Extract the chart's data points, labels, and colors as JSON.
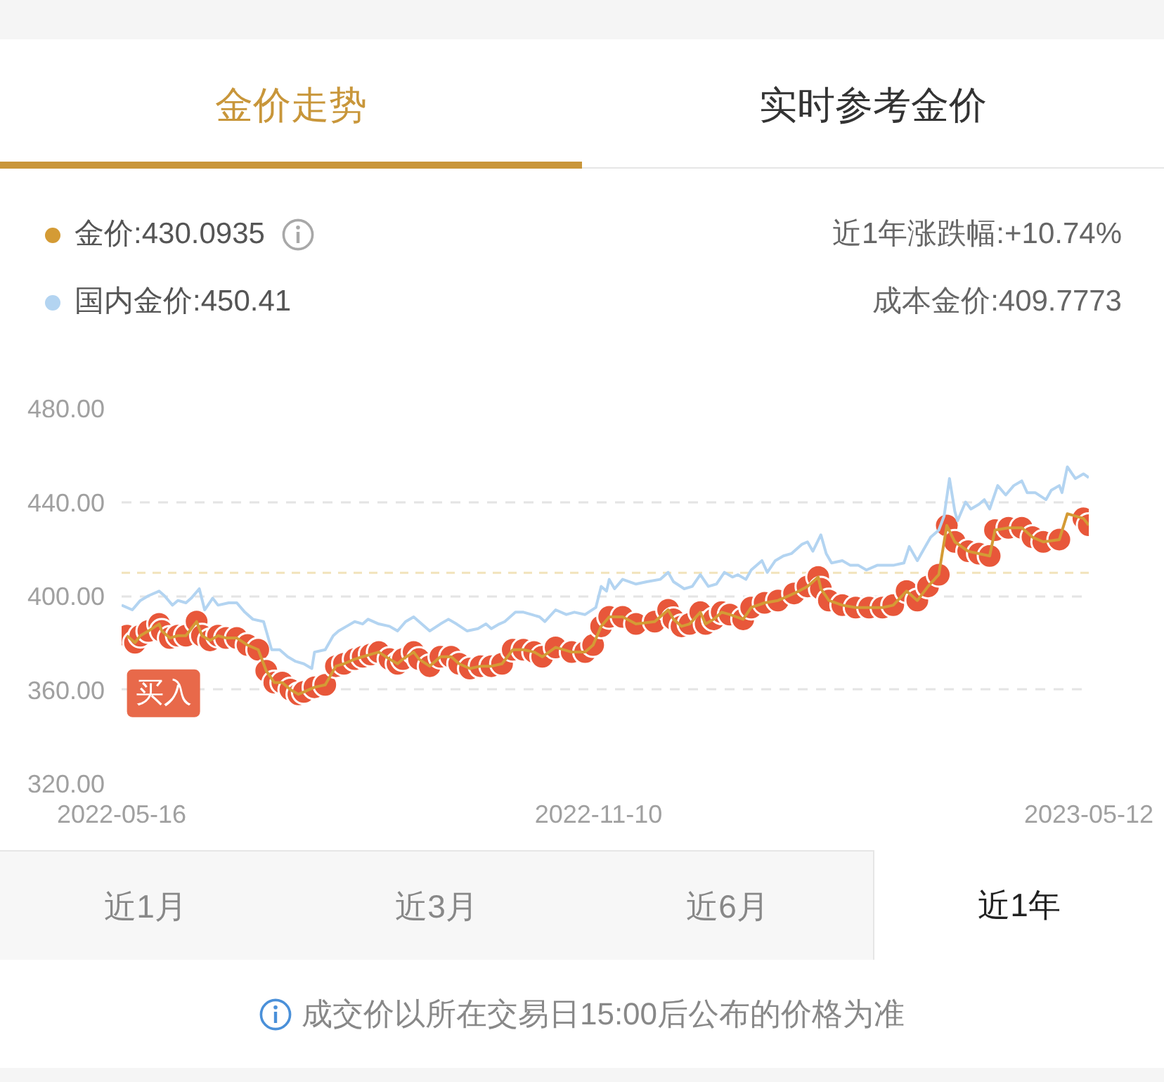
{
  "chart_data": {
    "type": "line",
    "title": "金价走势",
    "annotations": [
      "实时参考金价",
      "近1年涨跌幅:+10.74%",
      "成本金价:409.7773",
      "近1月",
      "近3月",
      "近6月",
      "近1年",
      "成交价以所在交易日15:00后公布的价格为准",
      {
        "text": "买入",
        "x": "2022-05-18",
        "y": 383
      }
    ],
    "xlim": [
      "2022-05-16",
      "2023-05-12"
    ],
    "xticks": [
      "2022-05-16",
      "2022-11-10",
      "2023-05-12"
    ],
    "ylim": [
      320,
      480
    ],
    "yticks": [
      {
        "value": 320,
        "label": "320.00"
      },
      {
        "value": 360,
        "label": "360.00"
      },
      {
        "value": 400,
        "label": "400.00"
      },
      {
        "value": 440,
        "label": "440.00"
      },
      {
        "value": 480,
        "label": "480.00"
      }
    ],
    "grid": "y",
    "legend": "top",
    "ref_lines": [
      {
        "axis": "y",
        "value": 409.7773,
        "color": "#f2e3bb",
        "line_style": "dashed"
      }
    ],
    "series": [
      {
        "name": "金价:430.0935",
        "color": "#d49b35",
        "x": [
          "2022-05-18",
          "2022-05-21",
          "2022-05-23",
          "2022-05-26",
          "2022-05-30",
          "2022-05-31",
          "2022-06-03",
          "2022-06-06",
          "2022-06-09",
          "2022-06-13",
          "2022-06-15",
          "2022-06-18",
          "2022-06-21",
          "2022-06-24",
          "2022-06-28",
          "2022-07-02",
          "2022-07-06",
          "2022-07-09",
          "2022-07-12",
          "2022-07-15",
          "2022-07-18",
          "2022-07-21",
          "2022-07-23",
          "2022-07-27",
          "2022-07-31",
          "2022-08-04",
          "2022-08-07",
          "2022-08-11",
          "2022-08-14",
          "2022-08-17",
          "2022-08-20",
          "2022-08-24",
          "2022-08-27",
          "2022-08-29",
          "2022-09-02",
          "2022-09-04",
          "2022-09-08",
          "2022-09-12",
          "2022-09-16",
          "2022-09-19",
          "2022-09-23",
          "2022-09-27",
          "2022-10-01",
          "2022-10-05",
          "2022-10-09",
          "2022-10-13",
          "2022-10-17",
          "2022-10-20",
          "2022-10-25",
          "2022-10-31",
          "2022-11-05",
          "2022-11-08",
          "2022-11-11",
          "2022-11-14",
          "2022-11-19",
          "2022-11-24",
          "2022-12-01",
          "2022-12-06",
          "2022-12-08",
          "2022-12-11",
          "2022-12-14",
          "2022-12-18",
          "2022-12-20",
          "2022-12-23",
          "2022-12-26",
          "2022-12-29",
          "2023-01-03",
          "2023-01-06",
          "2023-01-11",
          "2023-01-16",
          "2023-01-22",
          "2023-01-27",
          "2023-01-31",
          "2023-02-01",
          "2023-02-04",
          "2023-02-09",
          "2023-02-14",
          "2023-02-19",
          "2023-02-24",
          "2023-02-28",
          "2023-03-05",
          "2023-03-09",
          "2023-03-13",
          "2023-03-17",
          "2023-03-20",
          "2023-03-23",
          "2023-03-28",
          "2023-04-01",
          "2023-04-05",
          "2023-04-07",
          "2023-04-12",
          "2023-04-17",
          "2023-04-21",
          "2023-04-25",
          "2023-05-01",
          "2023-05-04",
          "2023-05-10",
          "2023-05-12"
        ],
        "values": [
          383,
          380,
          383,
          385,
          388,
          385,
          382,
          383,
          383,
          389,
          383,
          381,
          383,
          382,
          382,
          379,
          377,
          368,
          363,
          363,
          360,
          358,
          359,
          361,
          362,
          370,
          371,
          373,
          374,
          375,
          376,
          373,
          371,
          373,
          376,
          373,
          370,
          374,
          374,
          371,
          369,
          370,
          370,
          371,
          377,
          377,
          376,
          374,
          378,
          376,
          376,
          379,
          387,
          391,
          391,
          388,
          389,
          394,
          390,
          387,
          388,
          393,
          388,
          390,
          393,
          392,
          390,
          395,
          397,
          398,
          401,
          404,
          408,
          403,
          398,
          396,
          395,
          395,
          395,
          396,
          402,
          398,
          404,
          409,
          430,
          423,
          419,
          418,
          417,
          428,
          429,
          429,
          425,
          423,
          424,
          435,
          433,
          430.0935
        ]
      },
      {
        "name": "国内金价:450.41",
        "color": "#b3d4f1",
        "x": [
          "2022-05-16",
          "2022-05-20",
          "2022-05-23",
          "2022-05-26",
          "2022-05-30",
          "2022-06-01",
          "2022-06-04",
          "2022-06-06",
          "2022-06-09",
          "2022-06-11",
          "2022-06-14",
          "2022-06-16",
          "2022-06-19",
          "2022-06-21",
          "2022-06-25",
          "2022-06-28",
          "2022-07-01",
          "2022-07-04",
          "2022-07-08",
          "2022-07-11",
          "2022-07-14",
          "2022-07-17",
          "2022-07-20",
          "2022-07-23",
          "2022-07-26",
          "2022-07-27",
          "2022-07-31",
          "2022-08-03",
          "2022-08-05",
          "2022-08-08",
          "2022-08-11",
          "2022-08-14",
          "2022-08-16",
          "2022-08-20",
          "2022-08-24",
          "2022-08-27",
          "2022-08-30",
          "2022-09-02",
          "2022-09-05",
          "2022-09-08",
          "2022-09-12",
          "2022-09-15",
          "2022-09-18",
          "2022-09-22",
          "2022-09-26",
          "2022-09-29",
          "2022-10-01",
          "2022-10-04",
          "2022-10-06",
          "2022-10-10",
          "2022-10-13",
          "2022-10-16",
          "2022-10-19",
          "2022-10-21",
          "2022-10-25",
          "2022-10-29",
          "2022-11-01",
          "2022-11-05",
          "2022-11-09",
          "2022-11-11",
          "2022-11-13",
          "2022-11-14",
          "2022-11-16",
          "2022-11-19",
          "2022-11-24",
          "2022-11-28",
          "2022-12-03",
          "2022-12-06",
          "2022-12-08",
          "2022-12-12",
          "2022-12-15",
          "2022-12-18",
          "2022-12-21",
          "2022-12-24",
          "2022-12-27",
          "2022-12-30",
          "2023-01-01",
          "2023-01-04",
          "2023-01-06",
          "2023-01-10",
          "2023-01-12",
          "2023-01-15",
          "2023-01-18",
          "2023-01-21",
          "2023-01-25",
          "2023-01-27",
          "2023-01-29",
          "2023-02-01",
          "2023-02-03",
          "2023-02-05",
          "2023-02-09",
          "2023-02-12",
          "2023-02-15",
          "2023-02-18",
          "2023-02-22",
          "2023-02-25",
          "2023-02-28",
          "2023-03-04",
          "2023-03-06",
          "2023-03-09",
          "2023-03-11",
          "2023-03-14",
          "2023-03-17",
          "2023-03-19",
          "2023-03-21",
          "2023-03-23",
          "2023-03-24",
          "2023-03-27",
          "2023-03-29",
          "2023-04-01",
          "2023-04-03",
          "2023-04-05",
          "2023-04-08",
          "2023-04-11",
          "2023-04-14",
          "2023-04-17",
          "2023-04-19",
          "2023-04-22",
          "2023-04-26",
          "2023-04-28",
          "2023-05-01",
          "2023-05-02",
          "2023-05-04",
          "2023-05-07",
          "2023-05-10",
          "2023-05-12"
        ],
        "values": [
          396,
          394,
          398,
          400,
          402,
          400,
          396,
          398,
          397,
          399,
          403,
          394,
          399,
          396,
          397,
          397,
          393,
          390,
          389,
          377,
          377,
          374,
          372,
          371,
          369,
          376,
          377,
          383,
          385,
          387,
          389,
          388,
          390,
          388,
          387,
          385,
          389,
          391,
          388,
          385,
          388,
          390,
          388,
          385,
          386,
          388,
          386,
          388,
          389,
          393,
          393,
          392,
          391,
          389,
          394,
          392,
          393,
          392,
          395,
          404,
          402,
          407,
          403,
          407,
          405,
          406,
          407,
          410,
          406,
          403,
          404,
          409,
          404,
          405,
          410,
          408,
          409,
          407,
          411,
          415,
          410,
          415,
          417,
          418,
          422,
          423,
          419,
          426,
          418,
          414,
          415,
          413,
          413,
          411,
          413,
          413,
          413,
          414,
          421,
          415,
          419,
          425,
          428,
          434,
          450,
          436,
          432,
          440,
          437,
          439,
          441,
          437,
          447,
          443,
          447,
          449,
          444,
          444,
          441,
          445,
          447,
          444,
          455,
          450,
          452,
          450.41
        ]
      },
      {
        "type": "scatter",
        "marker": "circle",
        "color": "#e8573a",
        "x": [
          "2022-05-18",
          "2022-05-21",
          "2022-05-23",
          "2022-05-26",
          "2022-05-30",
          "2022-05-31",
          "2022-06-03",
          "2022-06-06",
          "2022-06-09",
          "2022-06-13",
          "2022-06-15",
          "2022-06-18",
          "2022-06-21",
          "2022-06-24",
          "2022-06-28",
          "2022-07-02",
          "2022-07-06",
          "2022-07-09",
          "2022-07-12",
          "2022-07-15",
          "2022-07-18",
          "2022-07-21",
          "2022-07-23",
          "2022-07-27",
          "2022-07-31",
          "2022-08-04",
          "2022-08-07",
          "2022-08-11",
          "2022-08-14",
          "2022-08-17",
          "2022-08-20",
          "2022-08-24",
          "2022-08-27",
          "2022-08-29",
          "2022-09-02",
          "2022-09-04",
          "2022-09-08",
          "2022-09-12",
          "2022-09-16",
          "2022-09-19",
          "2022-09-23",
          "2022-09-27",
          "2022-10-01",
          "2022-10-05",
          "2022-10-09",
          "2022-10-13",
          "2022-10-17",
          "2022-10-20",
          "2022-10-25",
          "2022-10-31",
          "2022-11-05",
          "2022-11-08",
          "2022-11-11",
          "2022-11-14",
          "2022-11-19",
          "2022-11-24",
          "2022-12-01",
          "2022-12-06",
          "2022-12-08",
          "2022-12-11",
          "2022-12-14",
          "2022-12-18",
          "2022-12-20",
          "2022-12-23",
          "2022-12-26",
          "2022-12-29",
          "2023-01-03",
          "2023-01-06",
          "2023-01-11",
          "2023-01-16",
          "2023-01-22",
          "2023-01-27",
          "2023-01-31",
          "2023-02-01",
          "2023-02-04",
          "2023-02-09",
          "2023-02-14",
          "2023-02-19",
          "2023-02-24",
          "2023-02-28",
          "2023-03-05",
          "2023-03-09",
          "2023-03-13",
          "2023-03-17",
          "2023-03-20",
          "2023-03-23",
          "2023-03-28",
          "2023-04-01",
          "2023-04-05",
          "2023-04-07",
          "2023-04-12",
          "2023-04-17",
          "2023-04-21",
          "2023-04-25",
          "2023-05-01",
          "2023-05-10",
          "2023-05-12"
        ],
        "values": [
          383,
          380,
          383,
          385,
          388,
          385,
          382,
          383,
          383,
          389,
          383,
          381,
          383,
          382,
          382,
          379,
          377,
          368,
          363,
          363,
          360,
          358,
          359,
          361,
          362,
          370,
          371,
          373,
          374,
          375,
          376,
          373,
          371,
          373,
          376,
          373,
          370,
          374,
          374,
          371,
          369,
          370,
          370,
          371,
          377,
          377,
          376,
          374,
          378,
          376,
          376,
          379,
          387,
          391,
          391,
          388,
          389,
          394,
          390,
          387,
          388,
          393,
          388,
          390,
          393,
          392,
          390,
          395,
          397,
          398,
          401,
          404,
          408,
          403,
          398,
          396,
          395,
          395,
          395,
          396,
          402,
          398,
          404,
          409,
          430,
          423,
          419,
          418,
          417,
          428,
          429,
          429,
          425,
          423,
          424,
          433,
          430.0935
        ]
      }
    ]
  }
}
